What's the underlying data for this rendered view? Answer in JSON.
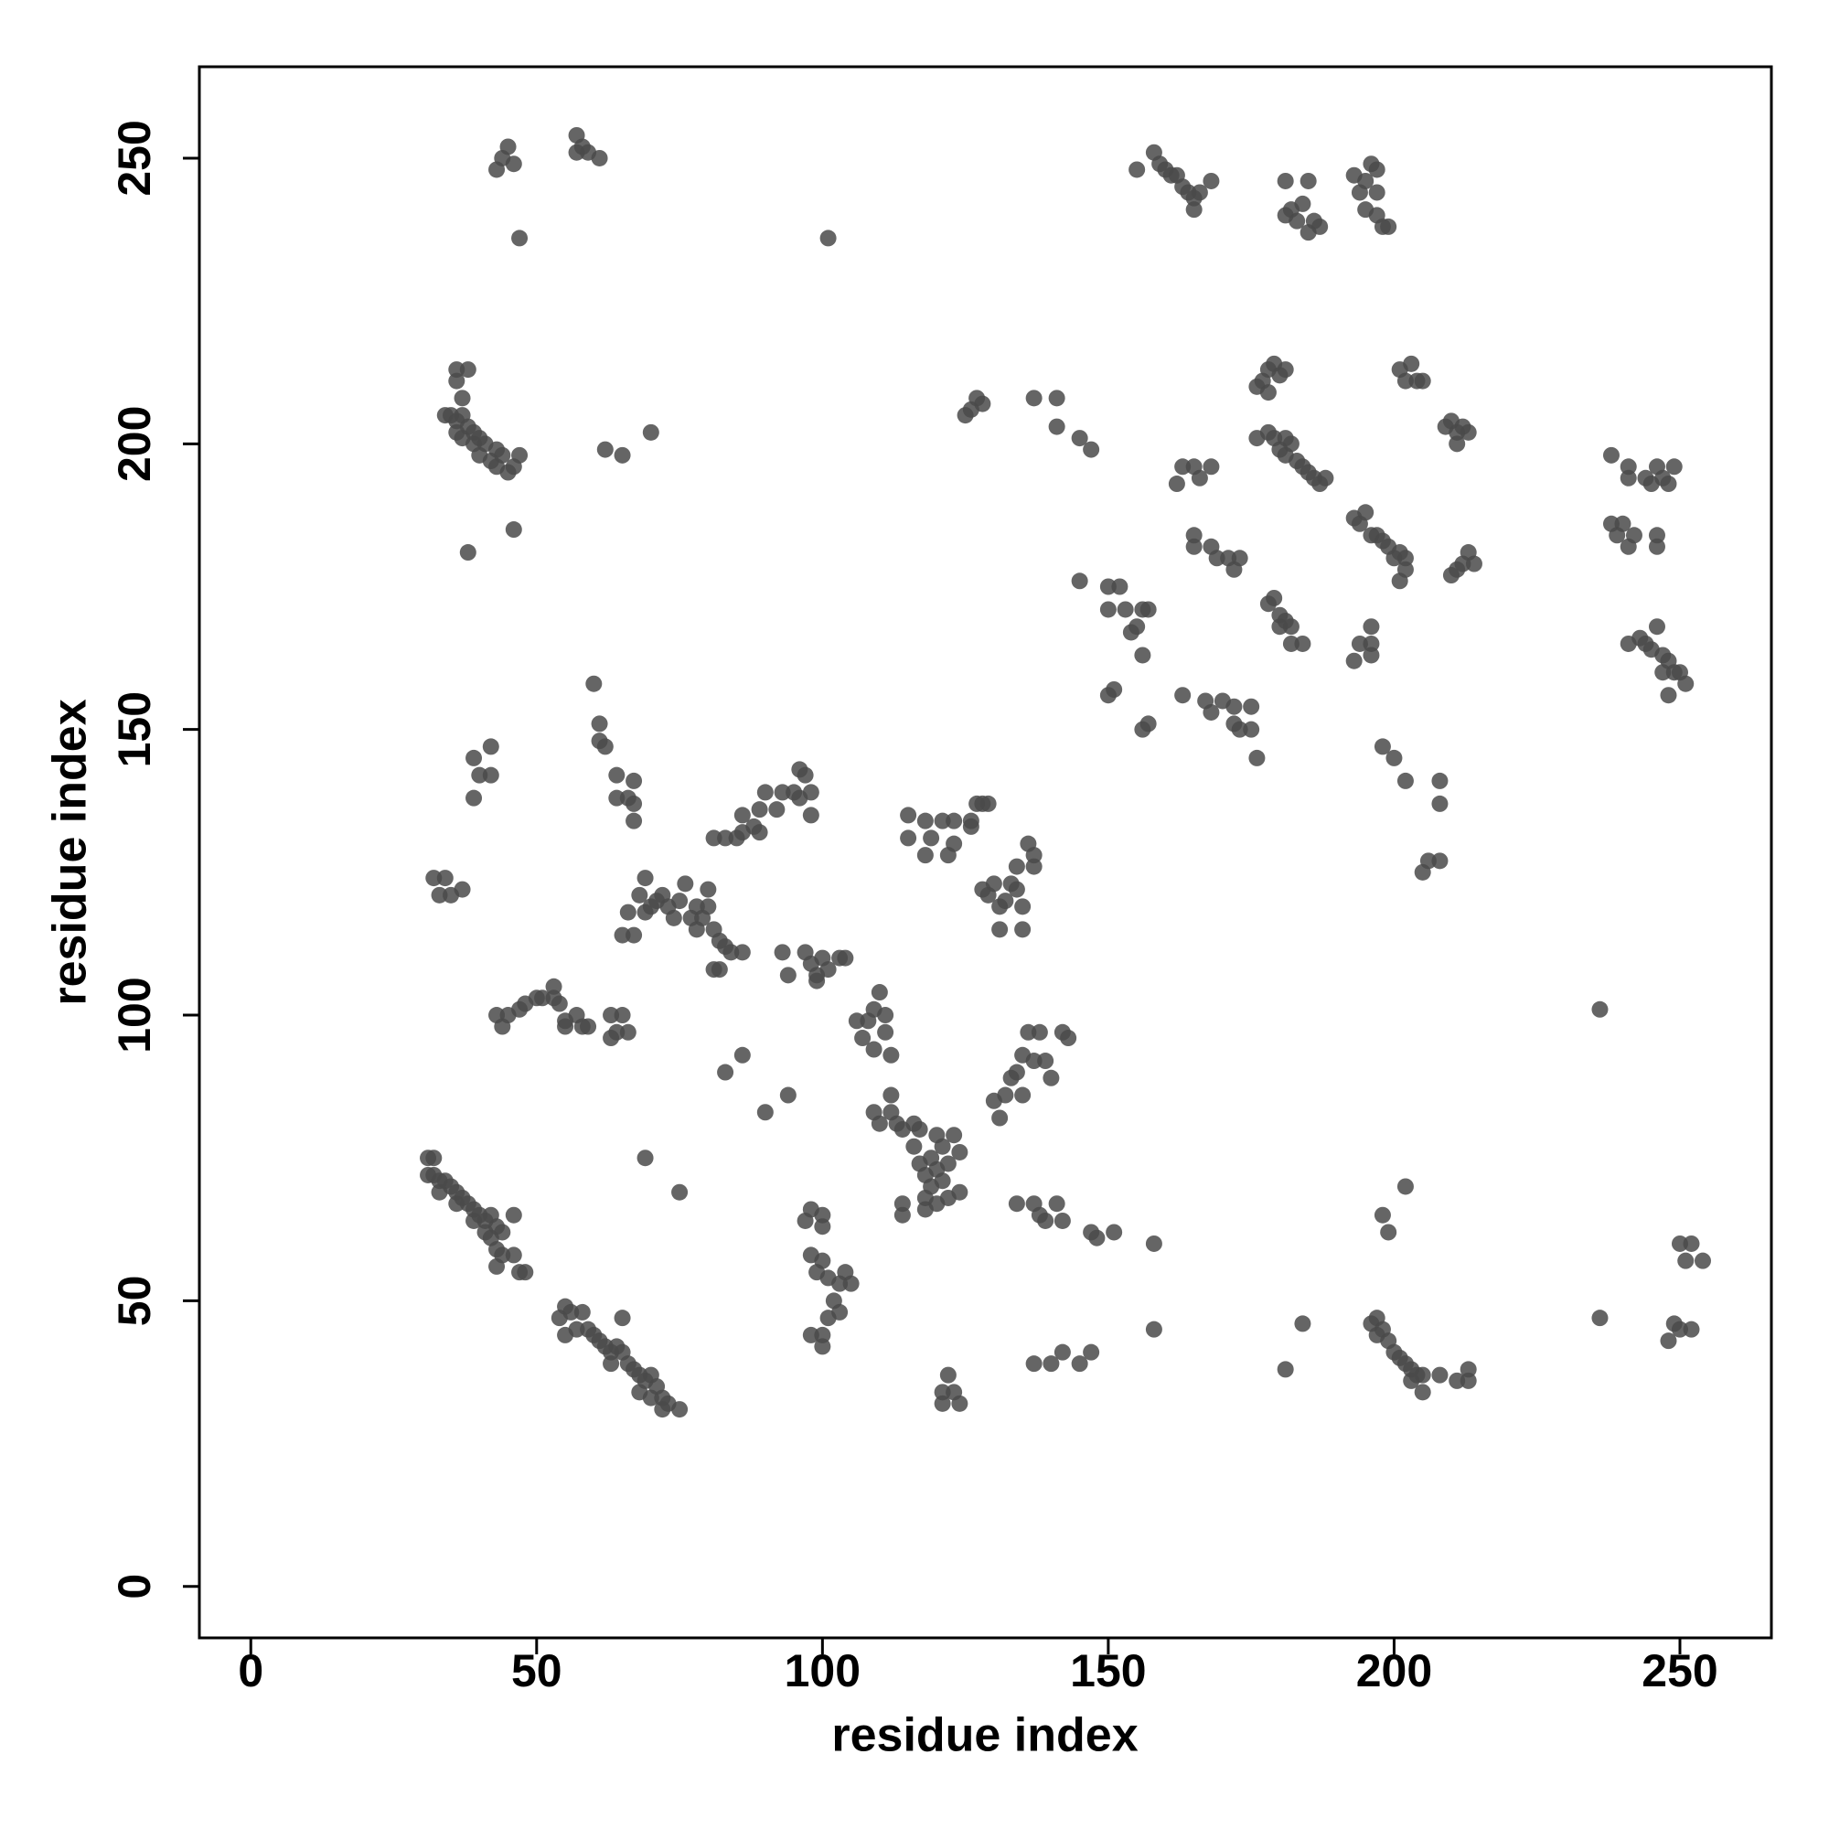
{
  "chart_data": {
    "type": "scatter",
    "xlabel": "residue index",
    "ylabel": "residue index",
    "xlim": [
      -9,
      266
    ],
    "ylim": [
      -9,
      266
    ],
    "xticks": [
      0,
      50,
      100,
      150,
      200,
      250
    ],
    "yticks": [
      0,
      50,
      100,
      150,
      200,
      250
    ],
    "color": "#4a4a4a",
    "alpha": 0.85,
    "grid": false,
    "x": [
      31,
      32,
      31,
      32,
      33,
      34,
      33,
      35,
      36,
      37,
      36,
      38,
      39,
      40,
      41,
      42,
      39,
      41,
      43,
      44,
      42,
      43,
      44,
      43,
      46,
      47,
      48,
      46,
      55,
      56,
      58,
      54,
      55,
      57,
      59,
      60,
      61,
      62,
      63,
      64,
      65,
      63,
      66,
      67,
      68,
      69,
      70,
      71,
      68,
      70,
      72,
      73,
      72,
      75,
      65,
      69,
      75,
      43,
      44,
      45,
      47,
      48,
      50,
      51,
      53,
      53,
      54,
      55,
      55,
      57,
      58,
      59,
      63,
      64,
      65,
      66,
      63,
      32,
      33,
      34,
      35,
      37,
      39,
      40,
      42,
      42,
      39,
      36,
      36,
      38,
      37,
      34,
      35,
      36,
      37,
      36,
      37,
      38,
      39,
      39,
      40,
      41,
      40,
      42,
      43,
      43,
      44,
      45,
      46,
      47,
      46,
      38,
      43,
      44,
      45,
      46,
      47,
      57,
      58,
      59,
      61,
      57,
      62,
      65,
      70,
      101,
      60,
      61,
      61,
      62,
      64,
      64,
      66,
      67,
      67,
      67,
      65,
      66,
      67,
      68,
      69,
      70,
      69,
      71,
      72,
      73,
      74,
      75,
      76,
      77,
      78,
      79,
      80,
      80,
      78,
      81,
      82,
      83,
      82,
      84,
      81,
      86,
      81,
      83,
      85,
      86,
      86,
      88,
      89,
      90,
      92,
      93,
      95,
      96,
      97,
      96,
      98,
      98,
      89,
      83,
      86,
      90,
      94,
      93,
      94,
      97,
      98,
      99,
      100,
      101,
      103,
      104,
      99,
      106,
      107,
      108,
      109,
      110,
      111,
      111,
      112,
      109,
      109,
      110,
      112,
      112,
      113,
      114,
      116,
      117,
      116,
      117,
      118,
      119,
      120,
      121,
      120,
      119,
      118,
      121,
      122,
      123,
      124,
      122,
      124,
      114,
      114,
      118,
      120,
      115,
      115,
      118,
      118,
      119,
      121,
      122,
      123,
      123,
      126,
      127,
      128,
      129,
      126,
      128,
      130,
      131,
      131,
      132,
      133,
      134,
      135,
      135,
      136,
      137,
      137,
      134,
      129,
      130,
      131,
      132,
      133,
      134,
      135,
      136,
      137,
      138,
      140,
      139,
      142,
      143,
      135,
      134,
      137,
      138,
      139,
      141,
      142,
      147,
      148,
      151,
      158,
      158,
      137,
      140,
      142,
      145,
      147,
      97,
      98,
      100,
      100,
      98,
      99,
      100,
      101,
      103,
      104,
      105,
      102,
      103,
      101,
      100,
      98,
      100,
      121,
      122,
      123,
      124,
      121,
      125,
      126,
      127,
      128,
      137,
      141,
      141,
      145,
      147,
      145,
      150,
      150,
      152,
      153,
      154,
      155,
      156,
      157,
      156,
      150,
      151,
      156,
      157,
      163,
      167,
      168,
      170,
      172,
      172,
      173,
      175,
      175,
      176,
      165,
      165,
      168,
      169,
      171,
      172,
      173,
      162,
      163,
      165,
      166,
      168,
      155,
      158,
      159,
      160,
      161,
      162,
      163,
      164,
      165,
      165,
      166,
      168,
      181,
      181,
      182,
      183,
      184,
      185,
      185,
      186,
      187,
      193,
      194,
      195,
      196,
      197,
      197,
      195,
      197,
      198,
      199,
      176,
      177,
      178,
      179,
      180,
      181,
      178,
      176,
      179,
      180,
      181,
      182,
      183,
      184,
      185,
      186,
      187,
      188,
      178,
      181,
      178,
      179,
      180,
      180,
      181,
      182,
      182,
      184,
      193,
      194,
      195,
      196,
      197,
      198,
      199,
      200,
      201,
      202,
      201,
      202,
      193,
      194,
      196,
      196,
      196,
      201,
      202,
      203,
      204,
      205,
      209,
      210,
      211,
      212,
      213,
      211,
      210,
      211,
      212,
      213,
      214,
      198,
      200,
      202,
      205,
      206,
      208,
      208,
      208,
      196,
      197,
      198,
      199,
      197,
      200,
      201,
      202,
      203,
      204,
      205,
      205,
      203,
      208,
      211,
      213,
      213,
      184,
      181,
      198,
      199,
      202,
      238,
      241,
      241,
      244,
      245,
      246,
      247,
      248,
      249,
      238,
      239,
      240,
      241,
      242,
      246,
      246,
      241,
      243,
      244,
      245,
      246,
      247,
      248,
      249,
      250,
      251,
      248,
      247,
      236,
      236,
      248,
      249,
      250,
      252,
      250,
      251,
      252,
      254
    ],
    "values": [
      75,
      75,
      72,
      72,
      71,
      71,
      69,
      70,
      69,
      68,
      67,
      67,
      66,
      65,
      64,
      65,
      64,
      62,
      63,
      62,
      61,
      59,
      58,
      56,
      58,
      55,
      55,
      65,
      49,
      48,
      48,
      47,
      44,
      45,
      45,
      44,
      43,
      42,
      41,
      42,
      41,
      39,
      39,
      38,
      37,
      36,
      37,
      35,
      34,
      33,
      33,
      32,
      31,
      31,
      47,
      75,
      69,
      100,
      98,
      100,
      101,
      102,
      103,
      103,
      103,
      105,
      102,
      99,
      98,
      100,
      98,
      98,
      100,
      97,
      100,
      97,
      96,
      124,
      121,
      124,
      121,
      122,
      145,
      142,
      142,
      147,
      138,
      213,
      211,
      213,
      208,
      205,
      205,
      204,
      205,
      202,
      201,
      203,
      200,
      202,
      201,
      200,
      198,
      197,
      199,
      196,
      198,
      195,
      196,
      198,
      185,
      181,
      248,
      250,
      252,
      249,
      236,
      254,
      252,
      251,
      250,
      251,
      199,
      198,
      202,
      236,
      158,
      151,
      148,
      147,
      142,
      138,
      138,
      141,
      137,
      134,
      114,
      118,
      114,
      121,
      124,
      119,
      118,
      120,
      121,
      119,
      117,
      120,
      123,
      117,
      119,
      117,
      122,
      119,
      115,
      115,
      113,
      112,
      108,
      111,
      108,
      111,
      131,
      131,
      131,
      132,
      135,
      133,
      136,
      139,
      136,
      139,
      139,
      143,
      142,
      138,
      139,
      135,
      132,
      90,
      93,
      83,
      86,
      111,
      107,
      111,
      109,
      107,
      110,
      108,
      110,
      110,
      106,
      99,
      96,
      99,
      101,
      104,
      100,
      97,
      93,
      94,
      83,
      81,
      86,
      83,
      81,
      80,
      81,
      80,
      77,
      74,
      72,
      75,
      79,
      77,
      73,
      70,
      68,
      71,
      74,
      79,
      76,
      68,
      69,
      67,
      65,
      66,
      67,
      135,
      131,
      134,
      128,
      131,
      134,
      128,
      130,
      134,
      134,
      137,
      137,
      137,
      133,
      122,
      123,
      119,
      115,
      120,
      123,
      126,
      119,
      115,
      130,
      128,
      126,
      122,
      121,
      85,
      82,
      86,
      89,
      90,
      93,
      97,
      92,
      97,
      89,
      92,
      97,
      96,
      86,
      67,
      67,
      65,
      64,
      67,
      64,
      62,
      61,
      62,
      60,
      45,
      39,
      39,
      41,
      39,
      41,
      64,
      66,
      65,
      63,
      58,
      55,
      57,
      54,
      53,
      55,
      53,
      50,
      48,
      47,
      44,
      44,
      42,
      34,
      37,
      34,
      32,
      32,
      205,
      206,
      208,
      207,
      208,
      208,
      203,
      201,
      199,
      176,
      175,
      171,
      175,
      171,
      167,
      168,
      171,
      171,
      163,
      156,
      157,
      150,
      151,
      156,
      155,
      153,
      155,
      154,
      151,
      150,
      154,
      150,
      145,
      182,
      184,
      182,
      180,
      180,
      178,
      180,
      193,
      196,
      196,
      194,
      196,
      248,
      251,
      249,
      248,
      247,
      247,
      245,
      244,
      243,
      241,
      244,
      246,
      246,
      240,
      241,
      239,
      242,
      246,
      237,
      239,
      238,
      247,
      244,
      246,
      249,
      248,
      244,
      241,
      240,
      238,
      238,
      210,
      211,
      213,
      214,
      212,
      213,
      209,
      201,
      201,
      199,
      198,
      200,
      197,
      196,
      195,
      194,
      193,
      194,
      202,
      201,
      172,
      173,
      170,
      168,
      169,
      168,
      165,
      165,
      187,
      186,
      188,
      184,
      184,
      183,
      182,
      180,
      181,
      180,
      176,
      178,
      162,
      165,
      165,
      168,
      163,
      213,
      211,
      214,
      211,
      211,
      203,
      204,
      202,
      203,
      202,
      200,
      177,
      178,
      179,
      181,
      179,
      147,
      145,
      141,
      125,
      127,
      127,
      141,
      137,
      46,
      44,
      45,
      43,
      47,
      41,
      40,
      39,
      38,
      37,
      37,
      34,
      36,
      37,
      36,
      38,
      36,
      46,
      38,
      65,
      62,
      70,
      198,
      196,
      194,
      194,
      193,
      196,
      194,
      193,
      196,
      186,
      184,
      186,
      182,
      184,
      184,
      182,
      165,
      166,
      165,
      164,
      168,
      163,
      162,
      160,
      160,
      158,
      156,
      160,
      101,
      47,
      43,
      46,
      45,
      45,
      60,
      57,
      60,
      57
    ]
  }
}
